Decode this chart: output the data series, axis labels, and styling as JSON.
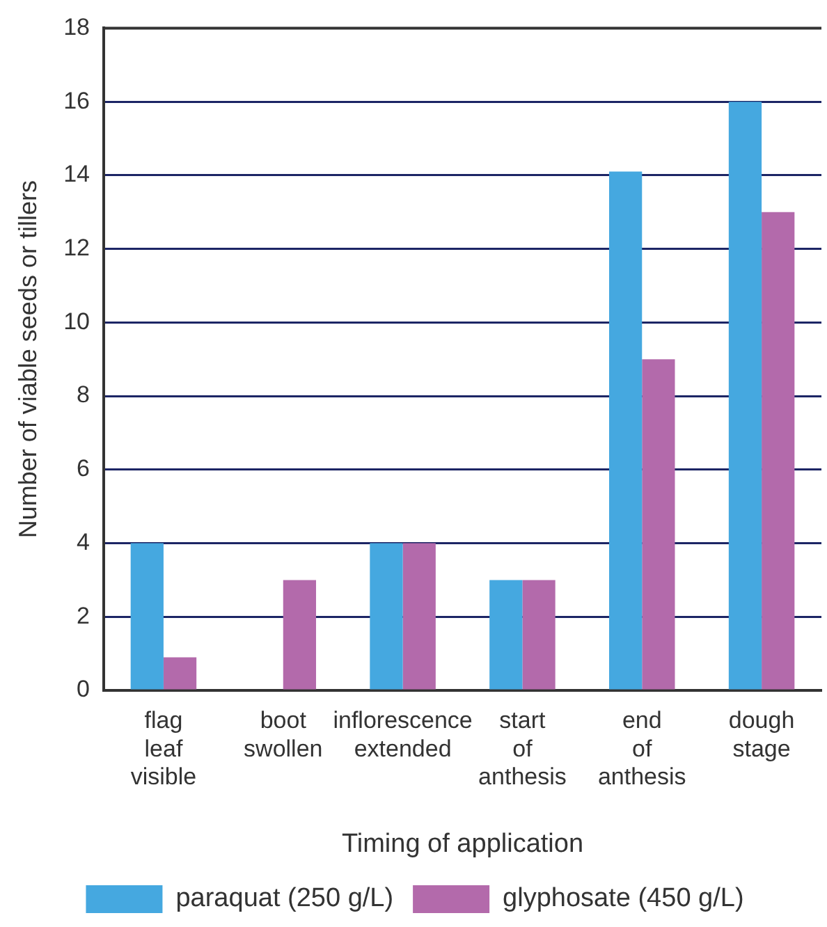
{
  "chart_data": {
    "type": "bar",
    "xlabel": "Timing of application",
    "ylabel": "Number of viable seeds or tillers",
    "categories": [
      "flag leaf visible",
      "boot swollen",
      "inflorescence extended",
      "start of anthesis",
      "end of anthesis",
      "dough stage"
    ],
    "series": [
      {
        "name": "paraquat (250 g/L)",
        "color": "#45a8e0",
        "values": [
          4,
          0,
          4,
          3,
          14.1,
          16
        ]
      },
      {
        "name": "glyphosate (450 g/L)",
        "color": "#b36aab",
        "values": [
          0.9,
          3,
          4,
          3,
          9,
          13
        ]
      }
    ],
    "ylim": [
      0,
      18
    ],
    "yticks": [
      0,
      2,
      4,
      6,
      8,
      10,
      12,
      14,
      16,
      18
    ],
    "grid": "y",
    "legend": "bottom"
  }
}
